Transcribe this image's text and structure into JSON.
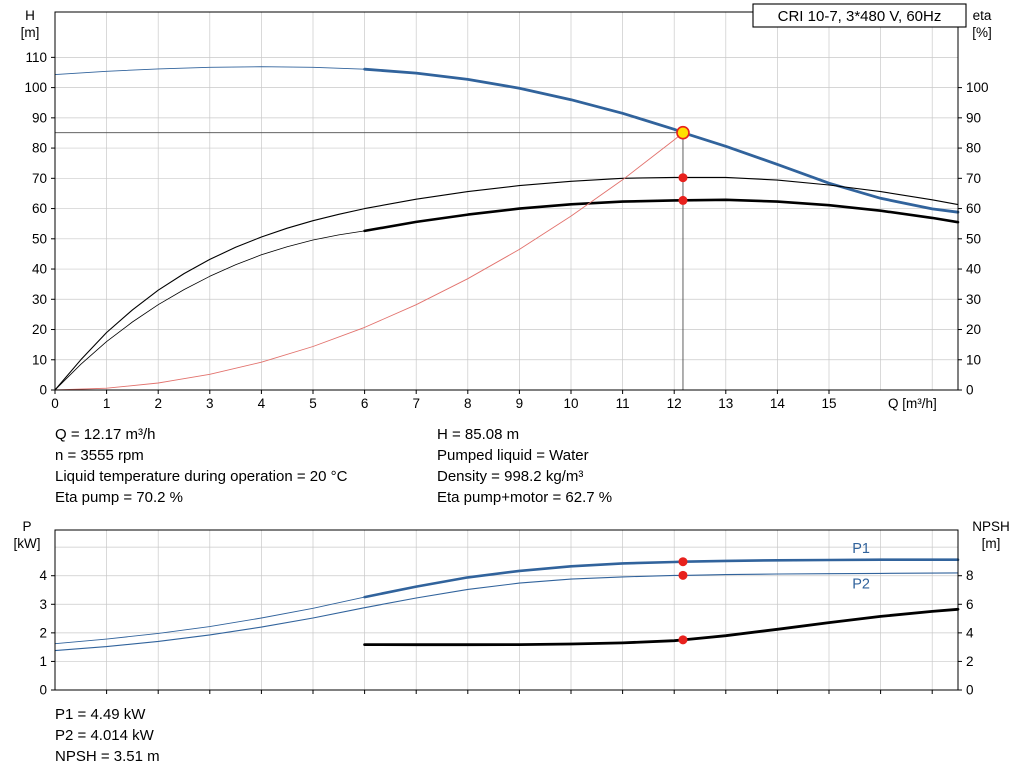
{
  "title_box": {
    "text": "CRI 10-7, 3*480 V, 60Hz"
  },
  "colors": {
    "curve_blue": "#31639c",
    "curve_black": "#000000",
    "system_curve_red": "#e2726d",
    "marker_red": "#e8211d",
    "marker_yellow_fill": "#ffdf00",
    "marker_yellow_stroke": "#e8211d",
    "grid": "#c9c9c9",
    "axis": "#000000",
    "ref_line": "#4d4d4d"
  },
  "operating_point": {
    "Q_m3h": 12.17,
    "H_m": 85.08,
    "n_rpm": 3555,
    "eta_pump_pct": 70.2,
    "eta_pump_motor_pct": 62.7,
    "P1_kW": 4.49,
    "P2_kW": 4.014,
    "NPSH_m": 3.51,
    "liquid": "Water",
    "density_kg_m3": 998.2,
    "liquid_temp_C": 20
  },
  "info_left": [
    "Q = 12.17 m³/h",
    "n = 3555 rpm",
    "Liquid temperature during operation = 20 °C",
    "Eta pump = 70.2 %"
  ],
  "info_right": [
    "H = 85.08 m",
    "Pumped liquid = Water",
    "Density = 998.2 kg/m³",
    "Eta pump+motor = 62.7 %"
  ],
  "info_bottom": [
    "P1 = 4.49 kW",
    "P2 = 4.014 kW",
    "NPSH = 3.51 m"
  ],
  "chart_data": [
    {
      "type": "line",
      "name": "hq-eta-chart",
      "title": "CRI 10-7, 3*480 V, 60Hz",
      "x_axis": {
        "label": "Q [m³/h]",
        "min": 0,
        "max": 17.5,
        "tick_values": [
          0,
          1,
          2,
          3,
          4,
          5,
          6,
          7,
          8,
          9,
          10,
          11,
          12,
          13,
          14,
          15
        ],
        "grid_values": [
          1,
          2,
          3,
          4,
          5,
          6,
          7,
          8,
          9,
          10,
          11,
          12,
          13,
          14,
          15,
          16,
          17
        ],
        "show_tick_labels": true
      },
      "y_left": {
        "label_lines": [
          "H",
          "[m]"
        ],
        "min": 0,
        "max": 125,
        "tick_values": [
          0,
          10,
          20,
          30,
          40,
          50,
          60,
          70,
          80,
          90,
          100,
          110
        ],
        "grid_values": [
          10,
          20,
          30,
          40,
          50,
          60,
          70,
          80,
          90,
          100,
          110
        ]
      },
      "y_right": {
        "label_lines": [
          "eta",
          "[%]"
        ],
        "tick_values": [
          0,
          10,
          20,
          30,
          40,
          50,
          60,
          70,
          80,
          90,
          100
        ],
        "scale_to_left": 1
      },
      "series": [
        {
          "name": "head-curve",
          "color": "#31639c",
          "axis": "left",
          "width": 2.8,
          "thin_width": 0.9,
          "thin_until": 6,
          "points": [
            [
              0,
              104.3
            ],
            [
              1,
              105.4
            ],
            [
              2,
              106.2
            ],
            [
              3,
              106.7
            ],
            [
              4,
              106.9
            ],
            [
              5,
              106.7
            ],
            [
              6,
              106.1
            ],
            [
              7,
              104.8
            ],
            [
              8,
              102.7
            ],
            [
              9,
              99.8
            ],
            [
              10,
              96.0
            ],
            [
              11,
              91.5
            ],
            [
              12,
              86.2
            ],
            [
              12.17,
              85.1
            ],
            [
              13,
              80.6
            ],
            [
              14,
              74.6
            ],
            [
              15,
              68.4
            ],
            [
              16,
              63.4
            ],
            [
              17,
              59.9
            ],
            [
              17.5,
              58.8
            ]
          ]
        },
        {
          "name": "eta-pump",
          "color": "#000000",
          "axis": "right",
          "width": 1.1,
          "points": [
            [
              0,
              0
            ],
            [
              0.5,
              10
            ],
            [
              1,
              19
            ],
            [
              1.5,
              26.5
            ],
            [
              2,
              33
            ],
            [
              2.5,
              38.5
            ],
            [
              3,
              43.2
            ],
            [
              3.5,
              47.2
            ],
            [
              4,
              50.6
            ],
            [
              4.5,
              53.5
            ],
            [
              5,
              56
            ],
            [
              5.5,
              58.1
            ],
            [
              6,
              60
            ],
            [
              7,
              63.1
            ],
            [
              8,
              65.6
            ],
            [
              9,
              67.6
            ],
            [
              10,
              69
            ],
            [
              11,
              70
            ],
            [
              12,
              70.3
            ],
            [
              13,
              70.3
            ],
            [
              14,
              69.4
            ],
            [
              15,
              67.8
            ],
            [
              16,
              65.6
            ],
            [
              17,
              62.9
            ],
            [
              17.5,
              61.3
            ]
          ]
        },
        {
          "name": "eta-pump-motor",
          "color": "#000000",
          "axis": "right",
          "width": 2.6,
          "thin_width": 0.8,
          "thin_until": 6,
          "points": [
            [
              0,
              0
            ],
            [
              0.5,
              8.5
            ],
            [
              1,
              16
            ],
            [
              1.5,
              22.5
            ],
            [
              2,
              28.2
            ],
            [
              2.5,
              33.2
            ],
            [
              3,
              37.6
            ],
            [
              3.5,
              41.4
            ],
            [
              4,
              44.7
            ],
            [
              4.5,
              47.4
            ],
            [
              5,
              49.6
            ],
            [
              5.5,
              51.3
            ],
            [
              6,
              52.6
            ],
            [
              7,
              55.6
            ],
            [
              8,
              58
            ],
            [
              9,
              60
            ],
            [
              10,
              61.4
            ],
            [
              11,
              62.3
            ],
            [
              12,
              62.7
            ],
            [
              13,
              62.9
            ],
            [
              14,
              62.3
            ],
            [
              15,
              61.1
            ],
            [
              16,
              59.3
            ],
            [
              17,
              56.9
            ],
            [
              17.5,
              55.5
            ]
          ]
        },
        {
          "name": "system-curve",
          "color": "#e2726d",
          "axis": "left",
          "width": 0.9,
          "points": [
            [
              0,
              0
            ],
            [
              1,
              0.6
            ],
            [
              2,
              2.3
            ],
            [
              3,
              5.2
            ],
            [
              4,
              9.2
            ],
            [
              5,
              14.4
            ],
            [
              6,
              20.7
            ],
            [
              7,
              28.2
            ],
            [
              8,
              36.8
            ],
            [
              9,
              46.5
            ],
            [
              10,
              57.5
            ],
            [
              11,
              69.5
            ],
            [
              12,
              82.7
            ],
            [
              12.17,
              85.1
            ]
          ]
        }
      ],
      "ref_lines": [
        {
          "q1": 0,
          "v1": 85.08,
          "q2": 12.17,
          "v2": 85.08
        },
        {
          "q1": 12.17,
          "v1": 0,
          "q2": 12.17,
          "v2": 85.08
        }
      ],
      "markers": [
        {
          "name": "operating-point-marker",
          "q": 12.17,
          "v": 85.08,
          "axis": "left",
          "r": 6,
          "fill": "#ffdf00",
          "stroke": "#e8211d",
          "interactable": true
        },
        {
          "name": "eta-pump-point",
          "q": 12.17,
          "v": 70.2,
          "axis": "right",
          "r": 4.5,
          "fill": "#e8211d"
        },
        {
          "name": "eta-pump-motor-point",
          "q": 12.17,
          "v": 62.7,
          "axis": "right",
          "r": 4.5,
          "fill": "#e8211d"
        }
      ],
      "annotations": []
    },
    {
      "type": "line",
      "name": "power-npsh-chart",
      "x_axis": {
        "label": "",
        "min": 0,
        "max": 17.5,
        "tick_values": [
          1,
          2,
          3,
          4,
          5,
          6,
          7,
          8,
          9,
          10,
          11,
          12,
          13,
          14,
          15,
          16,
          17
        ],
        "grid_values": [
          1,
          2,
          3,
          4,
          5,
          6,
          7,
          8,
          9,
          10,
          11,
          12,
          13,
          14,
          15,
          16,
          17
        ],
        "show_tick_labels": false
      },
      "y_left": {
        "label_lines": [
          "P",
          "[kW]"
        ],
        "min": 0,
        "max": 5.6,
        "tick_values": [
          0,
          1,
          2,
          3,
          4
        ],
        "grid_values": [
          1,
          2,
          3,
          4,
          5
        ]
      },
      "y_right": {
        "label_lines": [
          "NPSH",
          "[m]"
        ],
        "tick_values": [
          0,
          2,
          4,
          6,
          8
        ],
        "scale_to_left": 0.5
      },
      "series": [
        {
          "name": "p1-curve",
          "color": "#31639c",
          "axis": "left",
          "width": 2.6,
          "thin_width": 0.9,
          "thin_until": 6,
          "points": [
            [
              0,
              1.62
            ],
            [
              1,
              1.78
            ],
            [
              2,
              1.98
            ],
            [
              3,
              2.22
            ],
            [
              4,
              2.52
            ],
            [
              5,
              2.86
            ],
            [
              6,
              3.25
            ],
            [
              7,
              3.62
            ],
            [
              8,
              3.94
            ],
            [
              9,
              4.17
            ],
            [
              10,
              4.33
            ],
            [
              11,
              4.43
            ],
            [
              12,
              4.48
            ],
            [
              12.17,
              4.49
            ],
            [
              13,
              4.52
            ],
            [
              14,
              4.54
            ],
            [
              15,
              4.55
            ],
            [
              16,
              4.56
            ],
            [
              17.5,
              4.56
            ]
          ]
        },
        {
          "name": "p2-curve",
          "color": "#31639c",
          "axis": "left",
          "width": 1.1,
          "points": [
            [
              0,
              1.38
            ],
            [
              1,
              1.52
            ],
            [
              2,
              1.7
            ],
            [
              3,
              1.93
            ],
            [
              4,
              2.2
            ],
            [
              5,
              2.52
            ],
            [
              6,
              2.88
            ],
            [
              7,
              3.22
            ],
            [
              8,
              3.52
            ],
            [
              9,
              3.74
            ],
            [
              10,
              3.88
            ],
            [
              11,
              3.96
            ],
            [
              12,
              4.01
            ],
            [
              12.17,
              4.01
            ],
            [
              13,
              4.04
            ],
            [
              14,
              4.06
            ],
            [
              15,
              4.07
            ],
            [
              16,
              4.08
            ],
            [
              17.5,
              4.1
            ]
          ]
        },
        {
          "name": "npsh-curve",
          "color": "#000000",
          "axis": "right",
          "width": 2.8,
          "points": [
            [
              6,
              3.18
            ],
            [
              7,
              3.17
            ],
            [
              8,
              3.17
            ],
            [
              9,
              3.18
            ],
            [
              10,
              3.22
            ],
            [
              11,
              3.3
            ],
            [
              12,
              3.45
            ],
            [
              12.17,
              3.51
            ],
            [
              13,
              3.8
            ],
            [
              14,
              4.25
            ],
            [
              15,
              4.72
            ],
            [
              16,
              5.15
            ],
            [
              17,
              5.5
            ],
            [
              17.5,
              5.65
            ]
          ]
        }
      ],
      "ref_lines": [],
      "markers": [
        {
          "name": "p1-point",
          "q": 12.17,
          "v": 4.49,
          "axis": "left",
          "r": 4.5,
          "fill": "#e8211d"
        },
        {
          "name": "p2-point",
          "q": 12.17,
          "v": 4.014,
          "axis": "left",
          "r": 4.5,
          "fill": "#e8211d"
        },
        {
          "name": "npsh-point",
          "q": 12.17,
          "v": 3.51,
          "axis": "right",
          "r": 4.5,
          "fill": "#e8211d"
        }
      ],
      "annotations": [
        {
          "text": "P1",
          "q": 15.45,
          "v": 4.8,
          "color": "#31639c"
        },
        {
          "text": "P2",
          "q": 15.45,
          "v": 3.55,
          "color": "#31639c"
        }
      ]
    }
  ]
}
